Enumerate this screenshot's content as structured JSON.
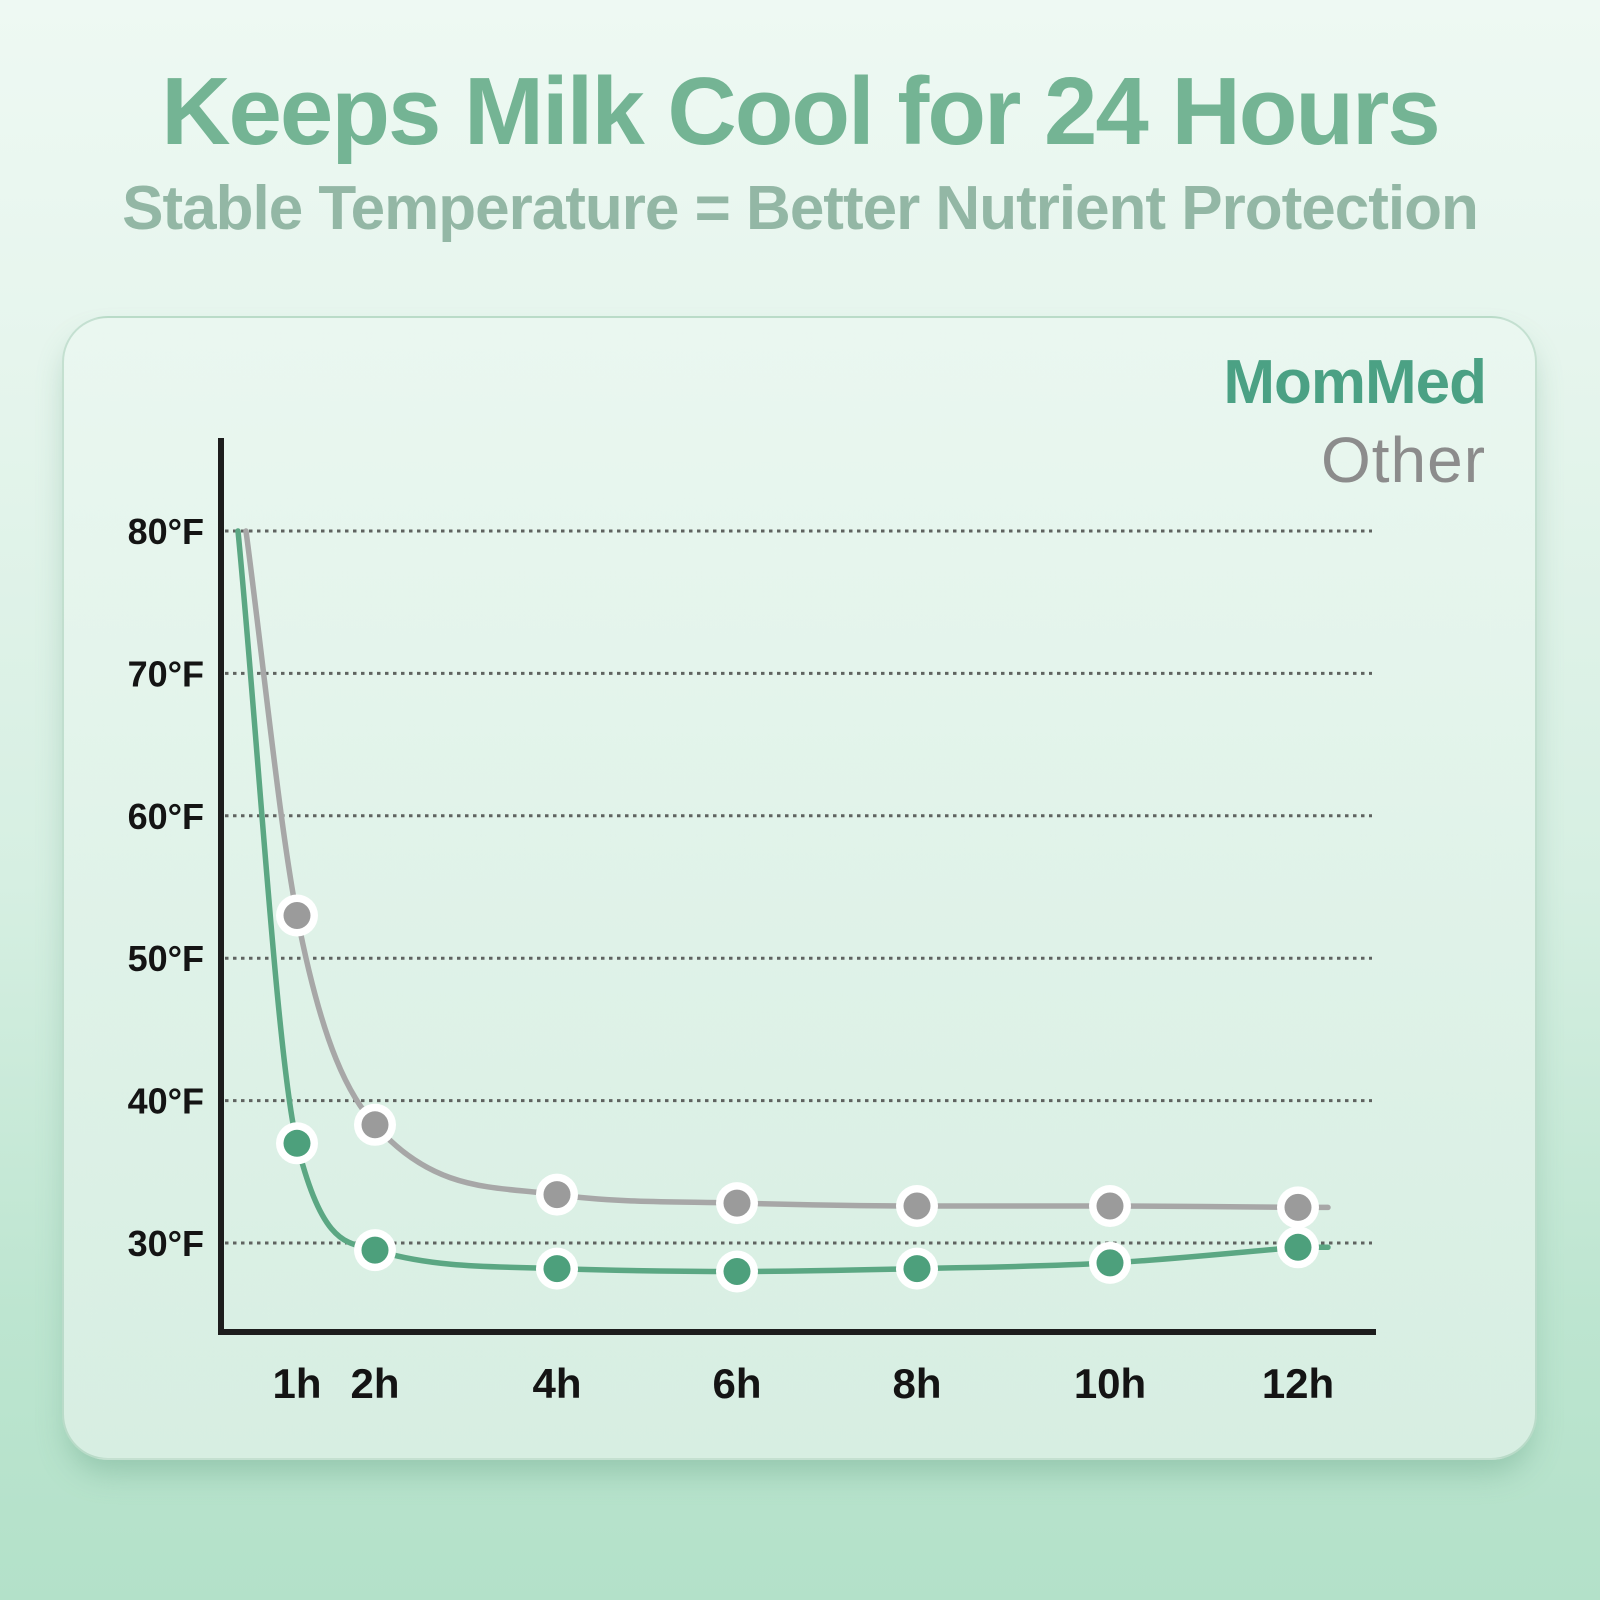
{
  "page": {
    "title": "Keeps Milk Cool for 24 Hours",
    "subtitle": "Stable Temperature = Better Nutrient Protection"
  },
  "legend": {
    "mommed_label": "MomMed",
    "other_label": "Other",
    "position": "top-right"
  },
  "colors": {
    "title": "#74b494",
    "subtitle": "#93b7a5",
    "mommed_green": "#4ba184",
    "other_gray": "#8c8c8c",
    "axis": "#1d1d1d",
    "gridline": "#5f6360",
    "tick_label": "#141414",
    "dot_ring": "#ffffff"
  },
  "chart_data": {
    "type": "line",
    "title": "Keeps Milk Cool for 24 Hours",
    "xlabel": "",
    "ylabel": "",
    "x_unit": "hours",
    "categories": [
      "1h",
      "2h",
      "4h",
      "6h",
      "8h",
      "10h",
      "12h"
    ],
    "x_hours": [
      1,
      2,
      4,
      6,
      8,
      10,
      12
    ],
    "y_ticks": [
      "80°F",
      "70°F",
      "60°F",
      "50°F",
      "40°F",
      "30°F"
    ],
    "y_tick_values": [
      80,
      70,
      60,
      50,
      40,
      30
    ],
    "ylim": [
      23.7,
      86.3
    ],
    "grid": "dotted horizontal",
    "legend_position": "top-right",
    "start_temp_f": 80,
    "series": [
      {
        "name": "MomMed",
        "line_color": "#5ba783",
        "dot_color": "#4da07c",
        "values": [
          37,
          29.5,
          28.2,
          28,
          28.2,
          28.6,
          29.7
        ]
      },
      {
        "name": "Other",
        "line_color": "#a7a7a7",
        "dot_color": "#9b9b9b",
        "values": [
          53,
          38.3,
          33.4,
          32.8,
          32.6,
          32.6,
          32.5
        ]
      }
    ]
  }
}
